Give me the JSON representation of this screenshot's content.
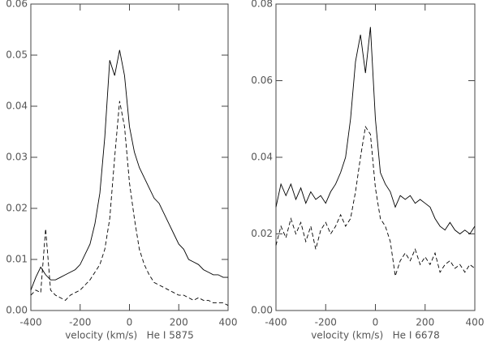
{
  "chart_data": [
    {
      "type": "line",
      "xlabel": "velocity (km/s)   He I 5875",
      "x": [
        -400,
        -380,
        -360,
        -340,
        -320,
        -300,
        -280,
        -260,
        -240,
        -220,
        -200,
        -180,
        -160,
        -140,
        -120,
        -100,
        -80,
        -60,
        -40,
        -20,
        0,
        20,
        40,
        60,
        80,
        100,
        120,
        140,
        160,
        180,
        200,
        220,
        240,
        260,
        280,
        300,
        320,
        340,
        360,
        380,
        400
      ],
      "series": [
        {
          "color": "#000000",
          "dash": "solid",
          "values": [
            0.004,
            0.0065,
            0.0085,
            0.007,
            0.006,
            0.006,
            0.0065,
            0.007,
            0.0075,
            0.008,
            0.009,
            0.011,
            0.013,
            0.017,
            0.023,
            0.034,
            0.049,
            0.046,
            0.051,
            0.046,
            0.036,
            0.031,
            0.028,
            0.026,
            0.024,
            0.022,
            0.021,
            0.019,
            0.017,
            0.015,
            0.013,
            0.012,
            0.01,
            0.0095,
            0.009,
            0.008,
            0.0075,
            0.007,
            0.007,
            0.0065,
            0.0065
          ]
        },
        {
          "color": "#000000",
          "dash": "dashed",
          "values": [
            0.003,
            0.004,
            0.0035,
            0.016,
            0.004,
            0.003,
            0.0025,
            0.002,
            0.003,
            0.0035,
            0.004,
            0.005,
            0.006,
            0.0075,
            0.009,
            0.012,
            0.018,
            0.03,
            0.041,
            0.036,
            0.025,
            0.018,
            0.012,
            0.009,
            0.007,
            0.0055,
            0.005,
            0.0045,
            0.004,
            0.0035,
            0.003,
            0.003,
            0.0025,
            0.002,
            0.0025,
            0.002,
            0.002,
            0.0015,
            0.0015,
            0.0015,
            0.001
          ]
        }
      ],
      "xlim": [
        -400,
        400
      ],
      "xticks": [
        -400,
        -200,
        0,
        200,
        400
      ],
      "ylim": [
        0,
        0.06
      ],
      "yticks": [
        {
          "value": 0,
          "label": "0.00"
        },
        {
          "value": 0.01,
          "label": "0.01"
        },
        {
          "value": 0.02,
          "label": "0.02"
        },
        {
          "value": 0.03,
          "label": "0.03"
        },
        {
          "value": 0.04,
          "label": "0.04"
        },
        {
          "value": 0.05,
          "label": "0.05"
        },
        {
          "value": 0.06,
          "label": "0.06"
        }
      ]
    },
    {
      "type": "line",
      "xlabel": "velocity (km/s)   He I 6678",
      "x": [
        -400,
        -380,
        -360,
        -340,
        -320,
        -300,
        -280,
        -260,
        -240,
        -220,
        -200,
        -180,
        -160,
        -140,
        -120,
        -100,
        -80,
        -60,
        -40,
        -20,
        0,
        20,
        40,
        60,
        80,
        100,
        120,
        140,
        160,
        180,
        200,
        220,
        240,
        260,
        280,
        300,
        320,
        340,
        360,
        380,
        400
      ],
      "series": [
        {
          "color": "#000000",
          "dash": "solid",
          "values": [
            0.027,
            0.033,
            0.03,
            0.033,
            0.029,
            0.032,
            0.028,
            0.031,
            0.029,
            0.03,
            0.028,
            0.031,
            0.033,
            0.036,
            0.04,
            0.05,
            0.065,
            0.072,
            0.062,
            0.074,
            0.05,
            0.036,
            0.033,
            0.031,
            0.027,
            0.03,
            0.029,
            0.03,
            0.028,
            0.029,
            0.028,
            0.027,
            0.024,
            0.022,
            0.021,
            0.023,
            0.021,
            0.02,
            0.021,
            0.02,
            0.022
          ]
        },
        {
          "color": "#000000",
          "dash": "dashed",
          "values": [
            0.017,
            0.022,
            0.019,
            0.024,
            0.02,
            0.023,
            0.018,
            0.022,
            0.016,
            0.021,
            0.023,
            0.02,
            0.022,
            0.025,
            0.022,
            0.024,
            0.031,
            0.04,
            0.048,
            0.046,
            0.032,
            0.024,
            0.022,
            0.018,
            0.009,
            0.013,
            0.015,
            0.013,
            0.016,
            0.012,
            0.014,
            0.012,
            0.015,
            0.01,
            0.012,
            0.013,
            0.011,
            0.012,
            0.01,
            0.012,
            0.011
          ]
        }
      ],
      "xlim": [
        -400,
        400
      ],
      "xticks": [
        -400,
        -200,
        0,
        200,
        400
      ],
      "ylim": [
        0,
        0.08
      ],
      "yticks": [
        {
          "value": 0,
          "label": "0.00"
        },
        {
          "value": 0.02,
          "label": "0.02"
        },
        {
          "value": 0.04,
          "label": "0.04"
        },
        {
          "value": 0.06,
          "label": "0.06"
        },
        {
          "value": 0.08,
          "label": "0.08"
        }
      ]
    }
  ]
}
